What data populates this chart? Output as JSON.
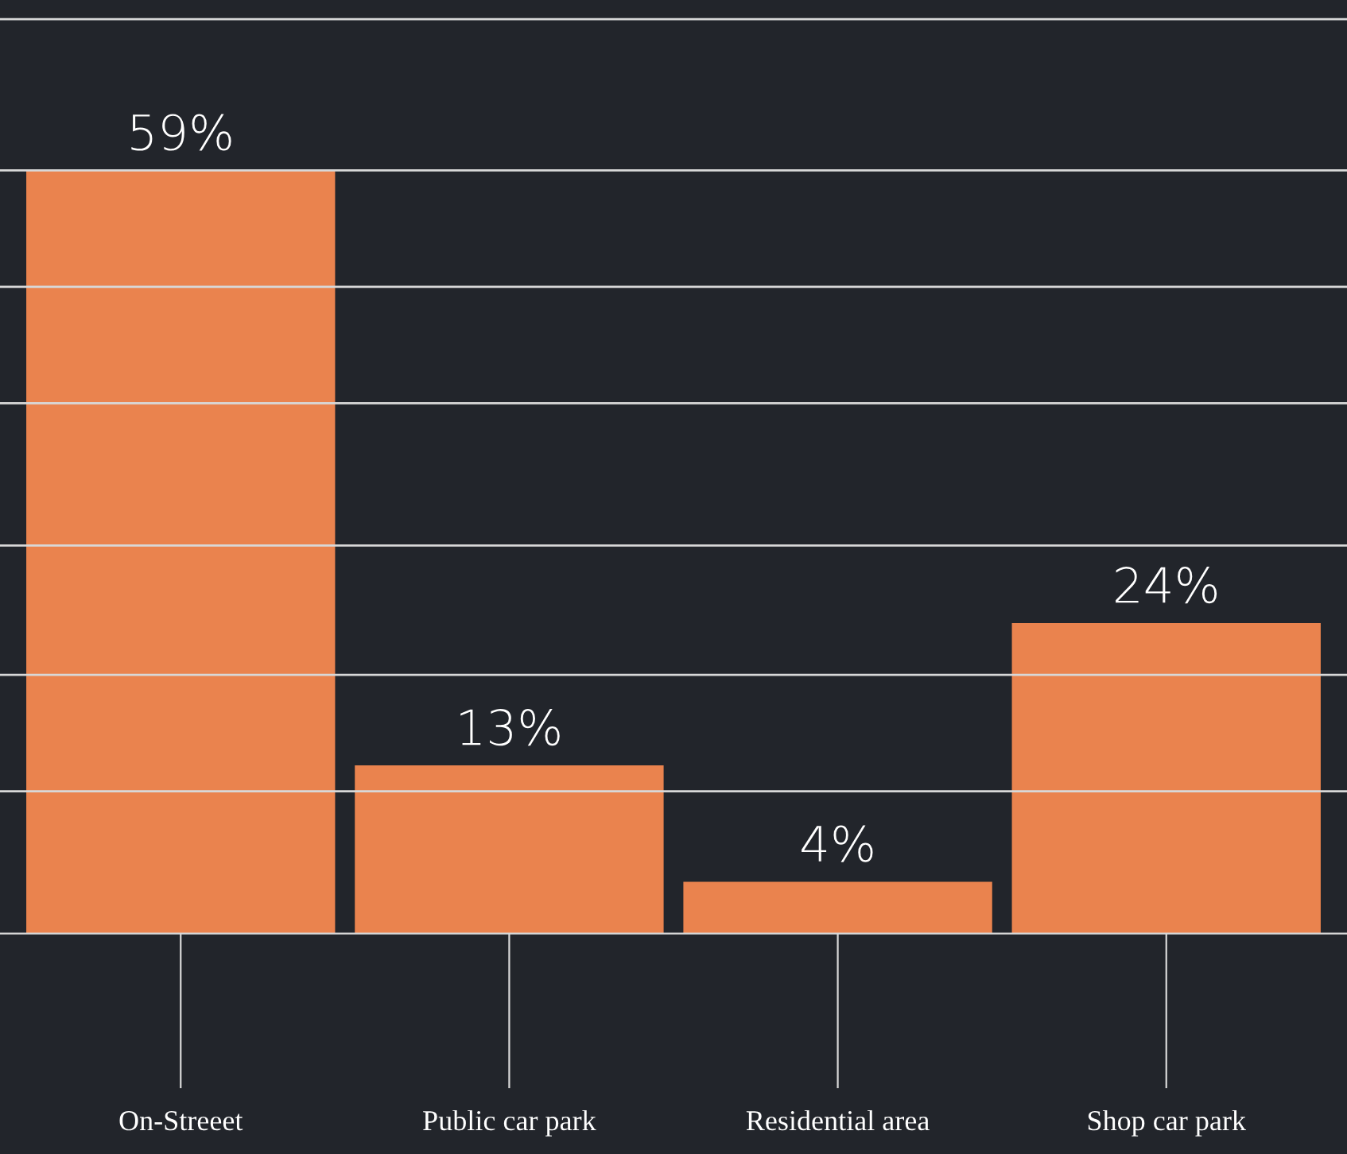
{
  "chart_data": {
    "type": "bar",
    "categories": [
      "On-Streeet",
      "Public car park",
      "Residential area",
      "Shop car park"
    ],
    "values": [
      59,
      13,
      4,
      24
    ],
    "color": "#ea834e",
    "data_labels": true,
    "value_labels": [
      "59%",
      "13%",
      "4%",
      "24%"
    ],
    "ylim": [
      0,
      72
    ],
    "yticks": [
      {
        "value": 11,
        "label": null
      },
      {
        "value": 20,
        "label": null
      },
      {
        "value": 30,
        "label": null
      },
      {
        "value": 41,
        "label": null
      },
      {
        "value": 50,
        "label": null
      },
      {
        "value": 59,
        "label": null
      },
      {
        "value": 70.7,
        "label": null
      }
    ],
    "tick_labels": "x",
    "grid": "y"
  }
}
